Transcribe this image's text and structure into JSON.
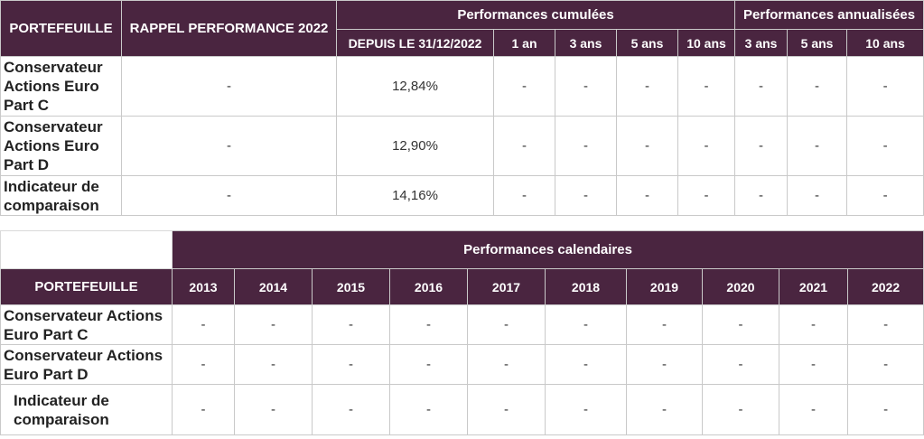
{
  "table1": {
    "headers": {
      "portefeuille": "PORTEFEUILLE",
      "rappel": "RAPPEL PERFORMANCE 2022",
      "cumulees": "Performances cumulées",
      "annualisees": "Performances annualisées",
      "depuis": "DEPUIS LE 31/12/2022",
      "cum_1an": "1 an",
      "cum_3ans": "3 ans",
      "cum_5ans": "5 ans",
      "cum_10ans": "10 ans",
      "ann_3ans": "3 ans",
      "ann_5ans": "5 ans",
      "ann_10ans": "10 ans"
    },
    "rows": [
      {
        "label": "Conservateur Actions Euro Part C",
        "values": [
          "-",
          "12,84%",
          "-",
          "-",
          "-",
          "-",
          "-",
          "-",
          "-"
        ]
      },
      {
        "label": "Conservateur Actions Euro Part D",
        "values": [
          "-",
          "12,90%",
          "-",
          "-",
          "-",
          "-",
          "-",
          "-",
          "-"
        ]
      },
      {
        "label": "Indicateur de comparaison",
        "values": [
          "-",
          "14,16%",
          "-",
          "-",
          "-",
          "-",
          "-",
          "-",
          "-"
        ]
      }
    ]
  },
  "table2": {
    "headers": {
      "calendaires": "Performances calendaires",
      "portefeuille": "PORTEFEUILLE",
      "years": [
        "2013",
        "2014",
        "2015",
        "2016",
        "2017",
        "2018",
        "2019",
        "2020",
        "2021",
        "2022"
      ]
    },
    "rows": [
      {
        "label": "Conservateur Actions Euro  Part C",
        "values": [
          "-",
          "-",
          "-",
          "-",
          "-",
          "-",
          "-",
          "-",
          "-",
          "-"
        ]
      },
      {
        "label": "Conservateur Actions Euro Part D",
        "values": [
          "-",
          "-",
          "-",
          "-",
          "-",
          "-",
          "-",
          "-",
          "-",
          "-"
        ]
      },
      {
        "label": "Indicateur de comparaison",
        "values": [
          "-",
          "-",
          "-",
          "-",
          "-",
          "-",
          "-",
          "-",
          "-",
          "-"
        ]
      }
    ]
  }
}
